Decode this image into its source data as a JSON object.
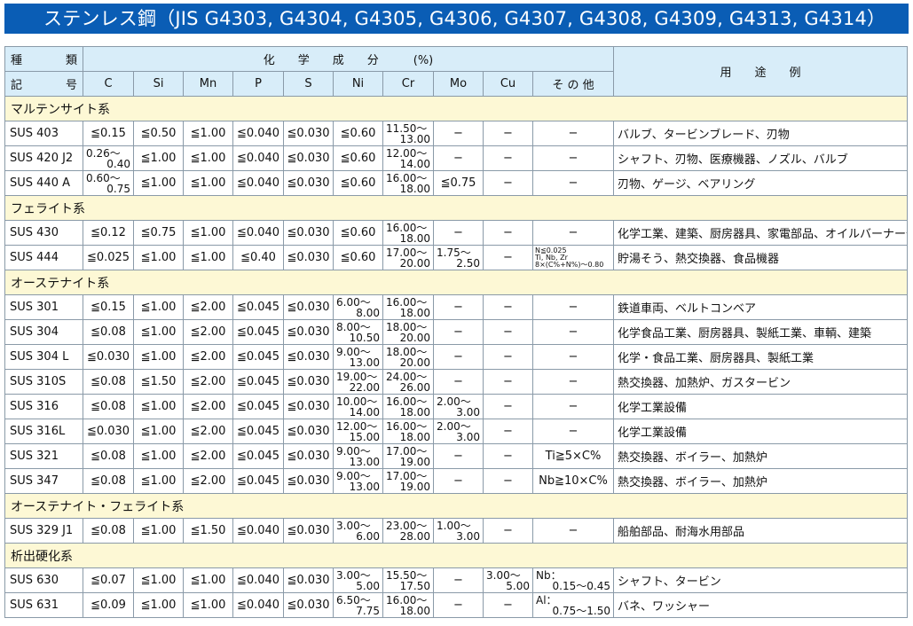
{
  "title": "ステンレス鋼（JIS G4303, G4304, G4305, G4306, G4307, G4308, G4309, G4313, G4314）",
  "header": {
    "type_top": [
      "種",
      "類"
    ],
    "type_bottom": [
      "記",
      "号"
    ],
    "chem": "化　　学　　成　　分　　　(%)",
    "use": "用　　途　　例",
    "columns": [
      "C",
      "Si",
      "Mn",
      "P",
      "S",
      "Ni",
      "Cr",
      "Mo",
      "Cu",
      "そ の 他"
    ]
  },
  "colors": {
    "title_bg": "#0a5db5",
    "header_bg": "#d8edf9",
    "section_bg": "#fdf8d5"
  },
  "sections": [
    {
      "name": "マルテンサイト系",
      "rows": [
        {
          "grade": "SUS 403",
          "cells": [
            "≦0.15",
            "≦0.50",
            "≦1.00",
            "≦0.040",
            "≦0.030",
            "≦0.60",
            [
              "11.50〜",
              "13.00"
            ],
            "−",
            "−",
            "−"
          ],
          "use": "バルブ、タービンブレード、刃物"
        },
        {
          "grade": "SUS 420 J2",
          "cells": [
            [
              "0.26〜",
              "0.40"
            ],
            "≦1.00",
            "≦1.00",
            "≦0.040",
            "≦0.030",
            "≦0.60",
            [
              "12.00〜",
              "14.00"
            ],
            "−",
            "−",
            "−"
          ],
          "use": "シャフト、刃物、医療機器、ノズル、バルブ"
        },
        {
          "grade": "SUS 440 A",
          "cells": [
            [
              "0.60〜",
              "0.75"
            ],
            "≦1.00",
            "≦1.00",
            "≦0.040",
            "≦0.030",
            "≦0.60",
            [
              "16.00〜",
              "18.00"
            ],
            "≦0.75",
            "−",
            "−"
          ],
          "use": "刃物、ゲージ、ベアリング"
        }
      ]
    },
    {
      "name": "フェライト系",
      "rows": [
        {
          "grade": "SUS 430",
          "cells": [
            "≦0.12",
            "≦0.75",
            "≦1.00",
            "≦0.040",
            "≦0.030",
            "≦0.60",
            [
              "16.00〜",
              "18.00"
            ],
            "−",
            "−",
            "−"
          ],
          "use": "化学工業、建築、厨房器具、家電部品、オイルバーナー部品"
        },
        {
          "grade": "SUS 444",
          "cells": [
            "≦0.025",
            "≦1.00",
            "≦1.00",
            "≦0.40",
            "≦0.030",
            "≦0.60",
            [
              "17.00〜",
              "20.00"
            ],
            [
              "1.75〜",
              "2.50"
            ],
            "−",
            {
              "tiny": [
                "N≦0.025",
                "Ti, Nb, Zr",
                "8×(C%+N%)〜0.80"
              ]
            }
          ],
          "use": "貯湯そう、熱交換器、食品機器"
        }
      ]
    },
    {
      "name": "オーステナイト系",
      "rows": [
        {
          "grade": "SUS 301",
          "cells": [
            "≦0.15",
            "≦1.00",
            "≦2.00",
            "≦0.045",
            "≦0.030",
            [
              "6.00〜",
              "8.00"
            ],
            [
              "16.00〜",
              "18.00"
            ],
            "−",
            "−",
            "−"
          ],
          "use": "鉄道車両、ベルトコンベア"
        },
        {
          "grade": "SUS 304",
          "cells": [
            "≦0.08",
            "≦1.00",
            "≦2.00",
            "≦0.045",
            "≦0.030",
            [
              "8.00〜",
              "10.50"
            ],
            [
              "18.00〜",
              "20.00"
            ],
            "−",
            "−",
            "−"
          ],
          "use": "化学食品工業、厨房器具、製紙工業、車輌、建築"
        },
        {
          "grade": "SUS 304 L",
          "cells": [
            "≦0.030",
            "≦1.00",
            "≦2.00",
            "≦0.045",
            "≦0.030",
            [
              "9.00〜",
              "13.00"
            ],
            [
              "18.00〜",
              "20.00"
            ],
            "−",
            "−",
            "−"
          ],
          "use": "化学・食品工業、厨房器具、製紙工業"
        },
        {
          "grade": "SUS 310S",
          "cells": [
            "≦0.08",
            "≦1.50",
            "≦2.00",
            "≦0.045",
            "≦0.030",
            [
              "19.00〜",
              "22.00"
            ],
            [
              "24.00〜",
              "26.00"
            ],
            "−",
            "−",
            "−"
          ],
          "use": "熱交換器、加熱炉、ガスタービン"
        },
        {
          "grade": "SUS 316",
          "cells": [
            "≦0.08",
            "≦1.00",
            "≦2.00",
            "≦0.045",
            "≦0.030",
            [
              "10.00〜",
              "14.00"
            ],
            [
              "16.00〜",
              "18.00"
            ],
            [
              "2.00〜",
              "3.00"
            ],
            "−",
            "−"
          ],
          "use": "化学工業設備"
        },
        {
          "grade": "SUS 316L",
          "cells": [
            "≦0.030",
            "≦1.00",
            "≦2.00",
            "≦0.045",
            "≦0.030",
            [
              "12.00〜",
              "15.00"
            ],
            [
              "16.00〜",
              "18.00"
            ],
            [
              "2.00〜",
              "3.00"
            ],
            "−",
            "−"
          ],
          "use": "化学工業設備"
        },
        {
          "grade": "SUS 321",
          "cells": [
            "≦0.08",
            "≦1.00",
            "≦2.00",
            "≦0.045",
            "≦0.030",
            [
              "9.00〜",
              "13.00"
            ],
            [
              "17.00〜",
              "19.00"
            ],
            "−",
            "−",
            "Ti≧5×C%"
          ],
          "use": "熱交換器、ボイラー、加熱炉"
        },
        {
          "grade": "SUS 347",
          "cells": [
            "≦0.08",
            "≦1.00",
            "≦2.00",
            "≦0.045",
            "≦0.030",
            [
              "9.00〜",
              "13.00"
            ],
            [
              "17.00〜",
              "19.00"
            ],
            "−",
            "−",
            "Nb≧10×C%"
          ],
          "use": "熱交換器、ボイラー、加熱炉"
        }
      ]
    },
    {
      "name": "オーステナイト・フェライト系",
      "rows": [
        {
          "grade": "SUS 329 J1",
          "cells": [
            "≦0.08",
            "≦1.00",
            "≦1.50",
            "≦0.040",
            "≦0.030",
            [
              "3.00〜",
              "6.00"
            ],
            [
              "23.00〜",
              "28.00"
            ],
            [
              "1.00〜",
              "3.00"
            ],
            "−",
            "−"
          ],
          "use": "船舶部品、耐海水用部品"
        }
      ]
    },
    {
      "name": "析出硬化系",
      "rows": [
        {
          "grade": "SUS 630",
          "cells": [
            "≦0.07",
            "≦1.00",
            "≦1.00",
            "≦0.040",
            "≦0.030",
            [
              "3.00〜",
              "5.00"
            ],
            [
              "15.50〜",
              "17.50"
            ],
            "−",
            [
              "3.00〜",
              "5.00"
            ],
            [
              "Nb：",
              "0.15〜0.45"
            ]
          ],
          "use": "シャフト、タービン"
        },
        {
          "grade": "SUS 631",
          "cells": [
            "≦0.09",
            "≦1.00",
            "≦1.00",
            "≦0.040",
            "≦0.030",
            [
              "6.50〜",
              "7.75"
            ],
            [
              "16.00〜",
              "18.00"
            ],
            "−",
            "−",
            [
              "Al：",
              "0.75〜1.50"
            ]
          ],
          "use": "バネ、ワッシャー"
        }
      ]
    }
  ]
}
